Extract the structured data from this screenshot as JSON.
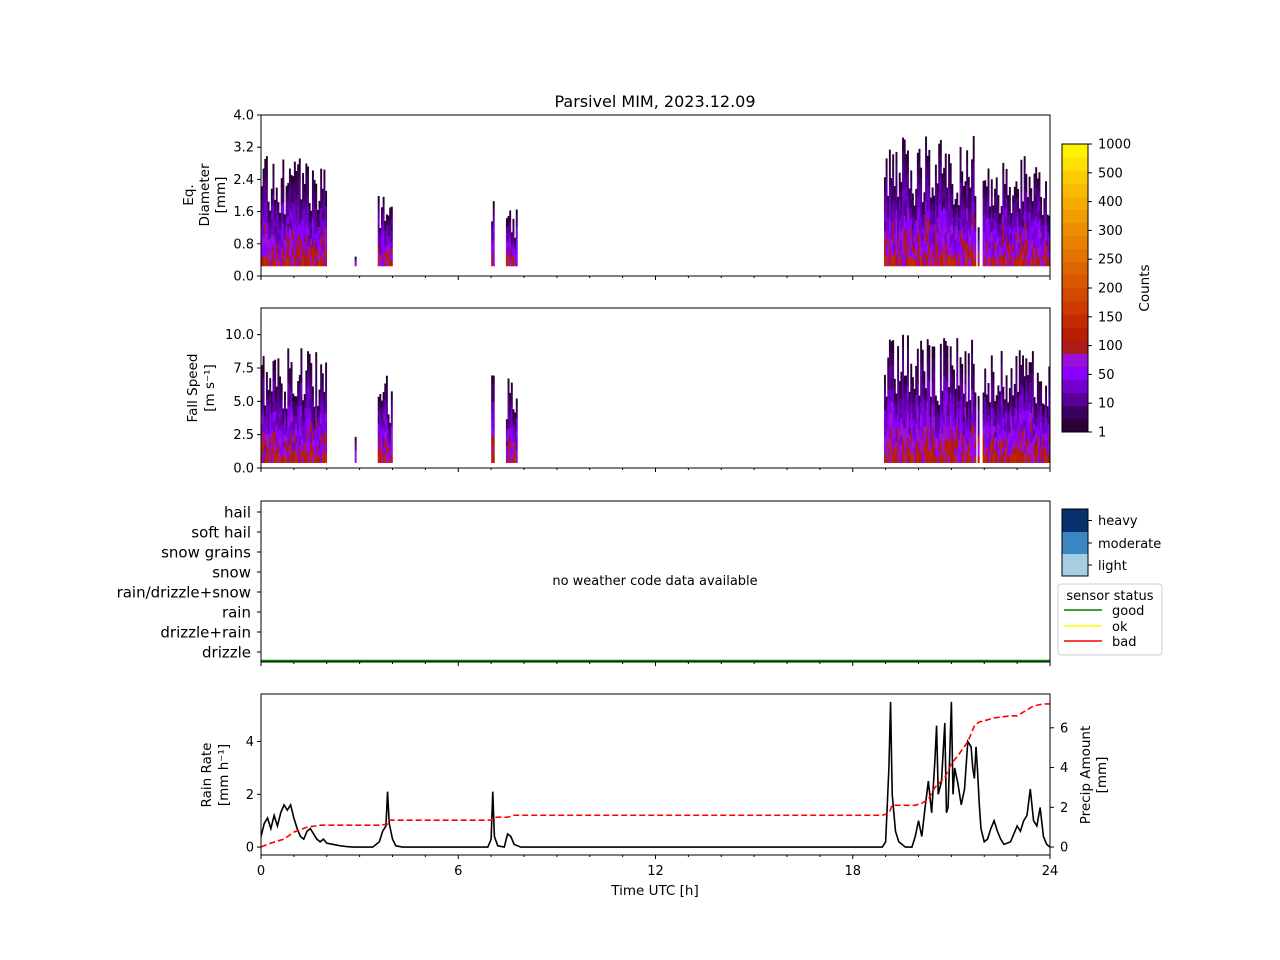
{
  "title": "Parsivel MIM, 2023.12.09",
  "colors": {
    "counts_cmap": [
      "#2b0035",
      "#3d0060",
      "#5a0099",
      "#7300cc",
      "#8a00ff",
      "#9a10d8",
      "#ad1a1a",
      "#bb1e00",
      "#c42a00",
      "#cc3a00",
      "#d24800",
      "#d85600",
      "#de6400",
      "#e47200",
      "#e98000",
      "#ed8e00",
      "#f19c00",
      "#f5ab00",
      "#f8bb00",
      "#fbcb00",
      "#fde100",
      "#fff200"
    ],
    "intensity": {
      "light": "#a6cee3",
      "moderate": "#3a86c0",
      "heavy": "#08306b"
    },
    "sensor_status": {
      "good": "#008000",
      "ok": "#ffff00",
      "bad": "#ff0000"
    },
    "rain_rate": "#000000",
    "precip_amount": "#ff0000"
  },
  "chart_data": [
    {
      "type": "heatmap",
      "panel": "diameter",
      "ylabel": [
        "Eq.",
        "Diameter",
        "[mm]"
      ],
      "ylim": [
        0,
        4.0
      ],
      "yticks": [
        "0.0",
        "0.8",
        "1.6",
        "2.4",
        "3.2",
        "4.0"
      ],
      "xlim": [
        0,
        24
      ],
      "blocks": [
        {
          "t0": 0.0,
          "t1": 2.0,
          "d_max": 3.0
        },
        {
          "t0": 2.85,
          "t1": 2.9,
          "d_max": 0.6
        },
        {
          "t0": 3.55,
          "t1": 4.0,
          "d_max": 2.3
        },
        {
          "t0": 7.0,
          "t1": 7.1,
          "d_max": 2.5
        },
        {
          "t0": 7.45,
          "t1": 7.8,
          "d_max": 1.8
        },
        {
          "t0": 18.95,
          "t1": 21.75,
          "d_max": 3.5
        },
        {
          "t0": 21.8,
          "t1": 21.85,
          "d_max": 1.4
        },
        {
          "t0": 21.95,
          "t1": 24.0,
          "d_max": 3.0
        }
      ],
      "colorbar": {
        "label": "Counts",
        "ticks": [
          "1",
          "10",
          "50",
          "100",
          "150",
          "200",
          "250",
          "300",
          "400",
          "500",
          "1000"
        ]
      }
    },
    {
      "type": "heatmap",
      "panel": "fall_speed",
      "ylabel": [
        "Fall Speed",
        "[m s⁻¹]"
      ],
      "ylim": [
        0,
        12
      ],
      "yticks": [
        "0.0",
        "2.5",
        "5.0",
        "7.5",
        "10.0"
      ],
      "xlim": [
        0,
        24
      ],
      "blocks": [
        {
          "t0": 0.0,
          "t1": 2.0,
          "v_max": 9.0
        },
        {
          "t0": 2.85,
          "t1": 2.9,
          "v_max": 3.0
        },
        {
          "t0": 3.55,
          "t1": 4.0,
          "v_max": 7.0
        },
        {
          "t0": 7.0,
          "t1": 7.1,
          "v_max": 8.0
        },
        {
          "t0": 7.45,
          "t1": 7.8,
          "v_max": 7.0
        },
        {
          "t0": 18.95,
          "t1": 21.75,
          "v_max": 10.0
        },
        {
          "t0": 21.8,
          "t1": 21.85,
          "v_max": 6.0
        },
        {
          "t0": 21.95,
          "t1": 24.0,
          "v_max": 9.0
        }
      ]
    },
    {
      "type": "table",
      "panel": "weather_code",
      "categories": [
        "hail",
        "soft hail",
        "snow grains",
        "snow",
        "rain/drizzle+snow",
        "rain",
        "drizzle+rain",
        "drizzle"
      ],
      "note": "no weather code data available",
      "intensity_legend": [
        "heavy",
        "moderate",
        "light"
      ],
      "sensor_status_legend": {
        "title": "sensor status",
        "entries": [
          "good",
          "ok",
          "bad"
        ]
      },
      "sensor_status_series": [
        {
          "t0": 0,
          "t1": 24,
          "status": "good"
        }
      ]
    },
    {
      "type": "line",
      "panel": "rain",
      "xlabel": "Time UTC [h]",
      "xlim": [
        0,
        24
      ],
      "xticks": [
        "0",
        "6",
        "12",
        "18",
        "24"
      ],
      "ylabel": [
        "Rain Rate",
        "[mm h⁻¹]"
      ],
      "ylim": [
        -0.3,
        5.8
      ],
      "yticks": [
        "0",
        "2",
        "4"
      ],
      "y2label": [
        "Precip Amount",
        "[mm]"
      ],
      "y2lim": [
        -0.4,
        7.7
      ],
      "y2ticks": [
        "0",
        "2",
        "4",
        "6"
      ],
      "series": [
        {
          "key": "rain_rate",
          "style": "solid",
          "points": [
            [
              0,
              0.4
            ],
            [
              0.1,
              0.9
            ],
            [
              0.2,
              1.1
            ],
            [
              0.3,
              0.7
            ],
            [
              0.4,
              1.2
            ],
            [
              0.5,
              0.8
            ],
            [
              0.6,
              1.3
            ],
            [
              0.7,
              1.6
            ],
            [
              0.8,
              1.4
            ],
            [
              0.9,
              1.6
            ],
            [
              1.0,
              1.1
            ],
            [
              1.1,
              0.7
            ],
            [
              1.2,
              0.4
            ],
            [
              1.3,
              0.3
            ],
            [
              1.4,
              0.6
            ],
            [
              1.5,
              0.7
            ],
            [
              1.6,
              0.5
            ],
            [
              1.7,
              0.3
            ],
            [
              1.8,
              0.2
            ],
            [
              1.9,
              0.3
            ],
            [
              2.0,
              0.15
            ],
            [
              2.2,
              0.1
            ],
            [
              2.4,
              0.05
            ],
            [
              2.6,
              0.02
            ],
            [
              2.8,
              0
            ],
            [
              3.0,
              0
            ],
            [
              3.4,
              0
            ],
            [
              3.6,
              0.2
            ],
            [
              3.7,
              0.6
            ],
            [
              3.8,
              0.8
            ],
            [
              3.85,
              2.1
            ],
            [
              3.9,
              0.9
            ],
            [
              4.0,
              0.3
            ],
            [
              4.1,
              0.05
            ],
            [
              4.3,
              0
            ],
            [
              6.9,
              0
            ],
            [
              7.0,
              0.3
            ],
            [
              7.05,
              2.1
            ],
            [
              7.1,
              0.4
            ],
            [
              7.2,
              0.05
            ],
            [
              7.4,
              0
            ],
            [
              7.5,
              0.5
            ],
            [
              7.6,
              0.4
            ],
            [
              7.7,
              0.1
            ],
            [
              7.9,
              0
            ],
            [
              18.9,
              0
            ],
            [
              19.0,
              0.2
            ],
            [
              19.1,
              3.0
            ],
            [
              19.15,
              5.5
            ],
            [
              19.2,
              2.0
            ],
            [
              19.3,
              0.6
            ],
            [
              19.4,
              0.2
            ],
            [
              19.6,
              0
            ],
            [
              19.8,
              0
            ],
            [
              19.9,
              0.4
            ],
            [
              20.0,
              1.0
            ],
            [
              20.1,
              0.4
            ],
            [
              20.2,
              1.5
            ],
            [
              20.3,
              2.5
            ],
            [
              20.4,
              1.3
            ],
            [
              20.5,
              3.3
            ],
            [
              20.55,
              4.6
            ],
            [
              20.6,
              2.0
            ],
            [
              20.7,
              2.5
            ],
            [
              20.8,
              4.7
            ],
            [
              20.85,
              1.3
            ],
            [
              20.9,
              1.5
            ],
            [
              21.0,
              5.5
            ],
            [
              21.05,
              2.0
            ],
            [
              21.1,
              3.0
            ],
            [
              21.2,
              2.4
            ],
            [
              21.3,
              1.6
            ],
            [
              21.4,
              2.2
            ],
            [
              21.5,
              4.0
            ],
            [
              21.6,
              3.8
            ],
            [
              21.65,
              3.0
            ],
            [
              21.7,
              2.6
            ],
            [
              21.75,
              3.8
            ],
            [
              21.8,
              2.8
            ],
            [
              21.85,
              1.6
            ],
            [
              21.9,
              0.7
            ],
            [
              22.0,
              0.2
            ],
            [
              22.1,
              0.3
            ],
            [
              22.2,
              0.7
            ],
            [
              22.3,
              1.0
            ],
            [
              22.4,
              0.6
            ],
            [
              22.5,
              0.3
            ],
            [
              22.6,
              0.1
            ],
            [
              22.8,
              0.2
            ],
            [
              22.9,
              0.5
            ],
            [
              23.0,
              0.8
            ],
            [
              23.1,
              0.6
            ],
            [
              23.2,
              1.0
            ],
            [
              23.3,
              1.2
            ],
            [
              23.4,
              2.2
            ],
            [
              23.5,
              1.0
            ],
            [
              23.6,
              0.8
            ],
            [
              23.7,
              1.5
            ],
            [
              23.8,
              0.4
            ],
            [
              23.9,
              0.1
            ],
            [
              24.0,
              0
            ]
          ]
        },
        {
          "key": "precip_amount",
          "style": "dashed",
          "axis": "right",
          "points": [
            [
              0,
              0
            ],
            [
              0.3,
              0.2
            ],
            [
              0.7,
              0.4
            ],
            [
              1.0,
              0.75
            ],
            [
              1.4,
              1.0
            ],
            [
              1.8,
              1.1
            ],
            [
              2.2,
              1.1
            ],
            [
              3.6,
              1.1
            ],
            [
              3.85,
              1.15
            ],
            [
              3.9,
              1.35
            ],
            [
              4.1,
              1.35
            ],
            [
              7.0,
              1.35
            ],
            [
              7.1,
              1.5
            ],
            [
              7.5,
              1.5
            ],
            [
              7.7,
              1.6
            ],
            [
              18.9,
              1.6
            ],
            [
              19.1,
              1.7
            ],
            [
              19.2,
              2.1
            ],
            [
              19.9,
              2.1
            ],
            [
              20.1,
              2.2
            ],
            [
              20.3,
              2.4
            ],
            [
              20.5,
              3.0
            ],
            [
              20.8,
              3.5
            ],
            [
              21.0,
              4.2
            ],
            [
              21.2,
              4.6
            ],
            [
              21.5,
              5.3
            ],
            [
              21.7,
              6.1
            ],
            [
              21.85,
              6.3
            ],
            [
              22.0,
              6.35
            ],
            [
              22.3,
              6.5
            ],
            [
              22.8,
              6.6
            ],
            [
              23.0,
              6.6
            ],
            [
              23.3,
              6.9
            ],
            [
              23.5,
              7.1
            ],
            [
              23.8,
              7.2
            ],
            [
              24.0,
              7.2
            ]
          ]
        }
      ]
    }
  ]
}
